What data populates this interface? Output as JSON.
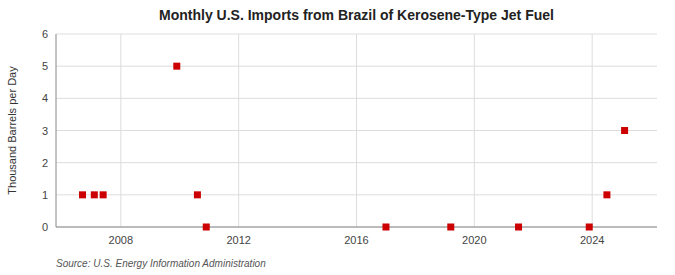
{
  "chart_data": {
    "type": "scatter",
    "title": "Monthly U.S. Imports from Brazil of Kerosene-Type Jet Fuel",
    "ylabel": "Thousand Barrels per Day",
    "annotations": [
      "Source: U.S. Energy Information Administration"
    ],
    "x": [
      2006.7,
      2007.1,
      2007.4,
      2009.9,
      2010.6,
      2010.9,
      2017.0,
      2019.2,
      2021.5,
      2023.9,
      2024.5,
      2025.1
    ],
    "values": [
      1,
      1,
      1,
      5,
      1,
      0,
      0,
      0,
      0,
      0,
      1,
      3
    ],
    "color": "#cc0000",
    "marker": "square",
    "xlim": [
      2005.8,
      2026.2
    ],
    "ylim": [
      0,
      6
    ],
    "xticks": [
      2008,
      2012,
      2016,
      2020,
      2024
    ],
    "yticks": [
      0,
      1,
      2,
      3,
      4,
      5,
      6
    ],
    "grid": true
  }
}
